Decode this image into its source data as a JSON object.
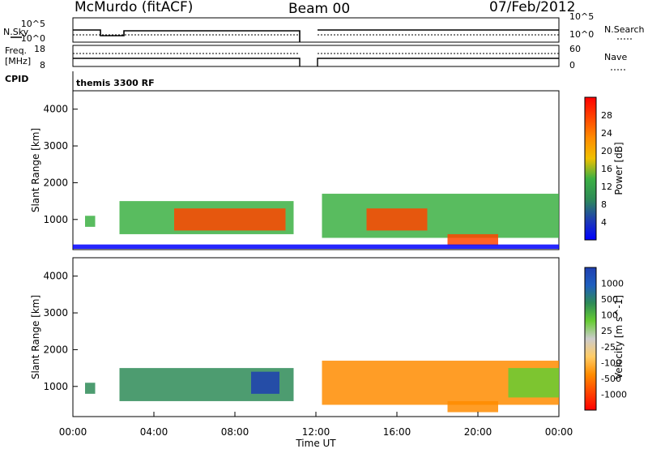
{
  "header": {
    "station": "McMurdo (fitACF)",
    "beam": "Beam 00",
    "date": "07/Feb/2012"
  },
  "top_panels": {
    "nsky_label": "N.Sky",
    "nsky_ticks": [
      "10^5",
      "10^0"
    ],
    "nsearch_label": "N.Search",
    "nsearch_ticks": [
      "10^5",
      "10^0"
    ],
    "freq_label_1": "Freq.",
    "freq_label_2": "[MHz]",
    "freq_ticks": [
      "18",
      "8"
    ],
    "nave_label": "Nave",
    "nave_ticks": [
      "60",
      "0"
    ],
    "cpid_label": "CPID",
    "cpid_value": "themis 3300 RF"
  },
  "colors": {
    "power_scale": [
      "#0000ff",
      "#1f3fb0",
      "#2e8b57",
      "#3cb043",
      "#f0c000",
      "#ff8c00",
      "#ff4500",
      "#ff0000"
    ],
    "velocity_scale": [
      "#ff0000",
      "#ff4500",
      "#ff8c00",
      "#ffcc66",
      "#cccccc",
      "#66cc33",
      "#2e8b57",
      "#1f5fbf",
      "#1f3fb0"
    ]
  },
  "chart_data": [
    {
      "type": "heatmap",
      "name": "power",
      "ylabel": "Slant Range [km]",
      "ylim": [
        180,
        4500
      ],
      "yticks": [
        "4000",
        "3000",
        "2000",
        "1000"
      ],
      "xticks": [
        "00:00",
        "04:00",
        "08:00",
        "12:00",
        "16:00",
        "20:00",
        "00:00"
      ],
      "colorbar_label": "Power [dB]",
      "colorbar_ticks": [
        "28",
        "24",
        "20",
        "16",
        "12",
        "8",
        "4"
      ],
      "bands": [
        {
          "t0": 0.6,
          "t1": 1.1,
          "r0": 800,
          "r1": 1100,
          "level": 3
        },
        {
          "t0": 2.3,
          "t1": 10.9,
          "r0": 600,
          "r1": 1500,
          "level": 3
        },
        {
          "t0": 5.0,
          "t1": 10.5,
          "r0": 700,
          "r1": 1300,
          "level": 6
        },
        {
          "t0": 12.3,
          "t1": 24.0,
          "r0": 500,
          "r1": 1700,
          "level": 3
        },
        {
          "t0": 14.5,
          "t1": 17.5,
          "r0": 700,
          "r1": 1300,
          "level": 6
        },
        {
          "t0": 18.5,
          "t1": 21.0,
          "r0": 300,
          "r1": 600,
          "level": 6
        },
        {
          "t0": 0.0,
          "t1": 24.0,
          "r0": 200,
          "r1": 320,
          "level": 0
        }
      ]
    },
    {
      "type": "heatmap",
      "name": "velocity",
      "ylabel": "Slant Range [km]",
      "ylim": [
        180,
        4500
      ],
      "yticks": [
        "4000",
        "3000",
        "2000",
        "1000"
      ],
      "xticks": [
        "00:00",
        "04:00",
        "08:00",
        "12:00",
        "16:00",
        "20:00",
        "00:00"
      ],
      "xlabel": "Time UT",
      "colorbar_label": "Velocity [m s^-1]",
      "colorbar_ticks": [
        "1000",
        "500",
        "100",
        "25",
        "-25",
        "-100",
        "-500",
        "-1000"
      ],
      "bands": [
        {
          "t0": 0.6,
          "t1": 1.1,
          "r0": 800,
          "r1": 1100,
          "level": 6
        },
        {
          "t0": 2.3,
          "t1": 10.9,
          "r0": 600,
          "r1": 1500,
          "level": 6
        },
        {
          "t0": 8.8,
          "t1": 10.2,
          "r0": 800,
          "r1": 1400,
          "level": 8
        },
        {
          "t0": 12.3,
          "t1": 24.0,
          "r0": 500,
          "r1": 1700,
          "level": 2
        },
        {
          "t0": 21.5,
          "t1": 24.0,
          "r0": 700,
          "r1": 1500,
          "level": 5
        },
        {
          "t0": 18.5,
          "t1": 21.0,
          "r0": 300,
          "r1": 600,
          "level": 2
        }
      ]
    }
  ]
}
